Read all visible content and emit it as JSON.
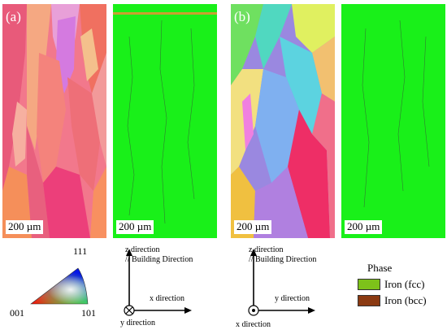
{
  "panels": [
    {
      "letter": "(a)",
      "scale": "200 µm"
    },
    {
      "letter": "",
      "scale": "200 µm"
    },
    {
      "letter": "(b)",
      "scale": "200 µm"
    },
    {
      "letter": "",
      "scale": "200 µm"
    }
  ],
  "ipf_key": {
    "top": "111",
    "left": "001",
    "right": "101"
  },
  "axes_a": {
    "vertical": "z direction",
    "vertical_sub": "// Building Direction",
    "horizontal": "x direction",
    "out_of_plane": "y direction"
  },
  "axes_b": {
    "vertical": "z direction",
    "vertical_sub": "// Building Direction",
    "horizontal": "y direction",
    "out_of_plane": "x direction"
  },
  "legend": {
    "title": "Phase",
    "items": [
      {
        "label": "Iron (fcc)",
        "color": "#7dc21a"
      },
      {
        "label": "Iron (bcc)",
        "color": "#8b3a12"
      }
    ]
  },
  "colors": {
    "phase_green": "#19f019"
  }
}
